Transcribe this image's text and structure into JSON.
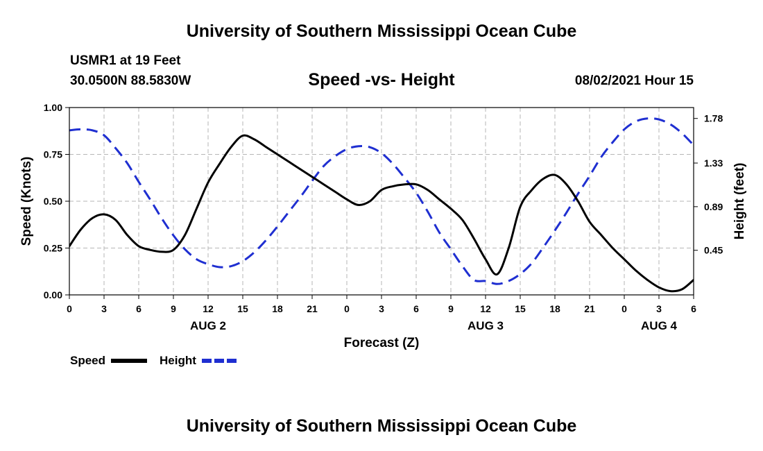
{
  "header": {
    "title": "University of Southern Mississippi Ocean Cube",
    "station": "USMR1 at 19 Feet",
    "coordinates": "30.0500N  88.5830W",
    "datetime": "08/02/2021 Hour 15"
  },
  "footer": {
    "title": "University of Southern Mississippi Ocean Cube"
  },
  "chart_data": {
    "type": "line",
    "title": "Speed -vs- Height",
    "xlabel": "Forecast (Z)",
    "ylabel": "Speed (Knots)",
    "y2label": "Height (feet)",
    "x_range_hours": [
      0,
      54
    ],
    "x_ticks": [
      {
        "hour": 0,
        "label": "0"
      },
      {
        "hour": 3,
        "label": "3"
      },
      {
        "hour": 6,
        "label": "6"
      },
      {
        "hour": 9,
        "label": "9"
      },
      {
        "hour": 12,
        "label": "12"
      },
      {
        "hour": 15,
        "label": "15"
      },
      {
        "hour": 18,
        "label": "18"
      },
      {
        "hour": 21,
        "label": "21"
      },
      {
        "hour": 24,
        "label": "0"
      },
      {
        "hour": 27,
        "label": "3"
      },
      {
        "hour": 30,
        "label": "6"
      },
      {
        "hour": 33,
        "label": "9"
      },
      {
        "hour": 36,
        "label": "12"
      },
      {
        "hour": 39,
        "label": "15"
      },
      {
        "hour": 42,
        "label": "18"
      },
      {
        "hour": 45,
        "label": "21"
      },
      {
        "hour": 48,
        "label": "0"
      },
      {
        "hour": 51,
        "label": "3"
      },
      {
        "hour": 54,
        "label": "6"
      }
    ],
    "date_labels": [
      {
        "hour": 12,
        "label": "AUG 2"
      },
      {
        "hour": 36,
        "label": "AUG 3"
      },
      {
        "hour": 51,
        "label": "AUG 4"
      }
    ],
    "y_axis": {
      "range": [
        0,
        1
      ],
      "ticks": [
        {
          "value": 0,
          "label": "0.00"
        },
        {
          "value": 0.25,
          "label": "0.25"
        },
        {
          "value": 0.5,
          "label": "0.50"
        },
        {
          "value": 0.75,
          "label": "0.75"
        },
        {
          "value": 1,
          "label": "1.00"
        }
      ]
    },
    "y2_axis": {
      "range": [
        0.0,
        1.89
      ],
      "ticks": [
        {
          "value": 0.45,
          "label": "0.45"
        },
        {
          "value": 0.89,
          "label": "0.89"
        },
        {
          "value": 1.33,
          "label": "1.33"
        },
        {
          "value": 1.78,
          "label": "1.78"
        }
      ]
    },
    "grid": true,
    "legend_position": "bottom-left",
    "series": [
      {
        "name": "Speed",
        "axis": "left",
        "color": "#000000",
        "style": "solid",
        "x": [
          0,
          1,
          2,
          3,
          4,
          5,
          6,
          7,
          8,
          9,
          10,
          11,
          12,
          13,
          14,
          15,
          16,
          17,
          18,
          19,
          20,
          21,
          22,
          23,
          24,
          25,
          26,
          27,
          28,
          29,
          30,
          31,
          32,
          33,
          34,
          35,
          36,
          37,
          38,
          39,
          40,
          41,
          42,
          43,
          44,
          45,
          46,
          47,
          48,
          49,
          50,
          51,
          52,
          53,
          54
        ],
        "values": [
          0.26,
          0.35,
          0.41,
          0.43,
          0.4,
          0.32,
          0.26,
          0.24,
          0.23,
          0.24,
          0.32,
          0.46,
          0.6,
          0.7,
          0.79,
          0.85,
          0.83,
          0.79,
          0.75,
          0.71,
          0.67,
          0.63,
          0.59,
          0.55,
          0.51,
          0.48,
          0.5,
          0.56,
          0.58,
          0.59,
          0.59,
          0.56,
          0.51,
          0.46,
          0.4,
          0.3,
          0.19,
          0.11,
          0.25,
          0.47,
          0.56,
          0.62,
          0.64,
          0.59,
          0.5,
          0.39,
          0.32,
          0.25,
          0.19,
          0.13,
          0.08,
          0.04,
          0.02,
          0.03,
          0.08
        ]
      },
      {
        "name": "Height",
        "axis": "right",
        "color": "#1f2fd1",
        "style": "dashed",
        "x": [
          0,
          1,
          2,
          3,
          4,
          5,
          6,
          7,
          8,
          9,
          10,
          11,
          12,
          13,
          14,
          15,
          16,
          17,
          18,
          19,
          20,
          21,
          22,
          23,
          24,
          25,
          26,
          27,
          28,
          29,
          30,
          31,
          32,
          33,
          34,
          35,
          36,
          37,
          38,
          39,
          40,
          41,
          42,
          43,
          44,
          45,
          46,
          47,
          48,
          49,
          50,
          51,
          52,
          53,
          54
        ],
        "values": [
          1.66,
          1.67,
          1.66,
          1.61,
          1.48,
          1.33,
          1.14,
          0.96,
          0.77,
          0.6,
          0.46,
          0.36,
          0.31,
          0.28,
          0.29,
          0.34,
          0.43,
          0.55,
          0.69,
          0.84,
          0.99,
          1.15,
          1.3,
          1.4,
          1.47,
          1.5,
          1.49,
          1.43,
          1.32,
          1.18,
          1.03,
          0.84,
          0.63,
          0.46,
          0.29,
          0.15,
          0.14,
          0.11,
          0.14,
          0.21,
          0.32,
          0.48,
          0.65,
          0.83,
          1.02,
          1.2,
          1.39,
          1.54,
          1.67,
          1.75,
          1.78,
          1.77,
          1.72,
          1.63,
          1.51
        ]
      }
    ]
  }
}
